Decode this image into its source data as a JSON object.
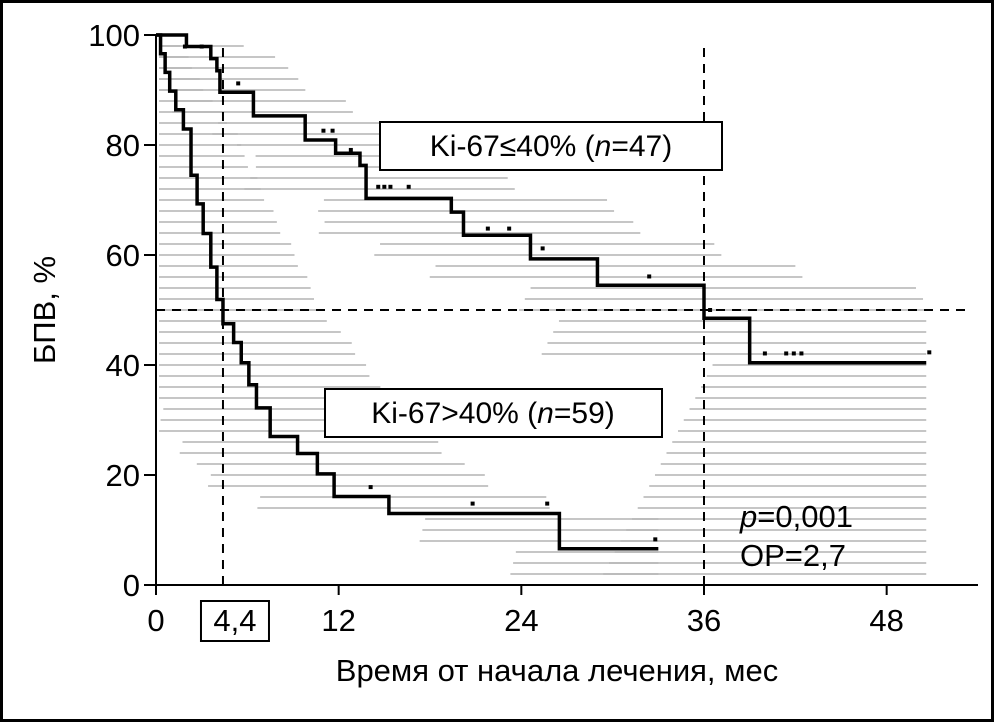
{
  "chart_data": {
    "type": "line",
    "title": "",
    "xlabel": "Время от начала лечения, мес",
    "ylabel": "БПВ, %",
    "xlim": [
      0,
      54
    ],
    "ylim": [
      0,
      100
    ],
    "x_ticks": [
      0,
      12,
      24,
      36,
      48
    ],
    "y_ticks": [
      0,
      20,
      40,
      60,
      80,
      100
    ],
    "x_tick_labels": [
      "0",
      "12",
      "24",
      "36",
      "48"
    ],
    "y_tick_labels": [
      "0",
      "20",
      "40",
      "60",
      "80",
      "100"
    ],
    "boxed_x_tick_label": "4,4",
    "median_lines": [
      4.4,
      36
    ],
    "reference_y": 50,
    "grid": false,
    "series": [
      {
        "name": "Ki-67≤40% (n=47)",
        "label_parts": [
          "Ki-67≤40% (",
          "n",
          "=47)"
        ],
        "step_x": [
          0,
          2,
          3.6,
          4.0,
          4.2,
          6.4,
          9.8,
          11.8,
          13.4,
          13.8,
          19.4,
          20.2,
          24.6,
          29.0,
          36.0,
          39.0,
          50.6
        ],
        "step_y": [
          100,
          97.9,
          95.7,
          93.5,
          89.6,
          85.3,
          80.9,
          78.5,
          76.3,
          70.3,
          67.8,
          63.6,
          59.3,
          54.5,
          48.5,
          40.4,
          40.4
        ],
        "censored_x": [
          1.9,
          3.0,
          5.4,
          11.0,
          11.6,
          12.8,
          14.6,
          15.0,
          15.4,
          16.6,
          21.8,
          23.2,
          25.4,
          32.4,
          36.4,
          40.0,
          41.4,
          41.9,
          42.4,
          50.8
        ],
        "censored_y": [
          97.9,
          97.9,
          91.2,
          82.6,
          82.6,
          79.1,
          72.4,
          72.4,
          72.4,
          72.4,
          64.8,
          64.8,
          61.2,
          56.1,
          50.0,
          42.1,
          42.1,
          42.1,
          42.1,
          42.3
        ]
      },
      {
        "name": "Ki-67>40% (n=59)",
        "label_parts": [
          "Ki-67>40% (",
          "n",
          "=59)"
        ],
        "step_x": [
          0,
          0.3,
          0.6,
          0.9,
          1.3,
          1.8,
          2.3,
          2.7,
          3.1,
          3.6,
          4.0,
          4.4,
          5.1,
          5.6,
          6.1,
          6.6,
          7.5,
          9.3,
          10.6,
          11.7,
          15.3,
          26.5,
          33.0
        ],
        "step_y": [
          100,
          96.6,
          93.2,
          89.8,
          86.4,
          82.9,
          74.5,
          69.3,
          63.9,
          57.8,
          51.9,
          47.5,
          44.1,
          40.4,
          36.4,
          32.2,
          27.0,
          23.9,
          20.2,
          16.1,
          13.0,
          6.6,
          6.6
        ],
        "censored_x": [
          14.1,
          20.8,
          25.7,
          32.8
        ],
        "censored_y": [
          17.8,
          14.8,
          14.8,
          8.3
        ]
      }
    ],
    "ci_note_hidden": false,
    "annotations": {
      "p_parts": [
        "p",
        "=0,001"
      ],
      "hr": "ОР=2,7"
    }
  }
}
